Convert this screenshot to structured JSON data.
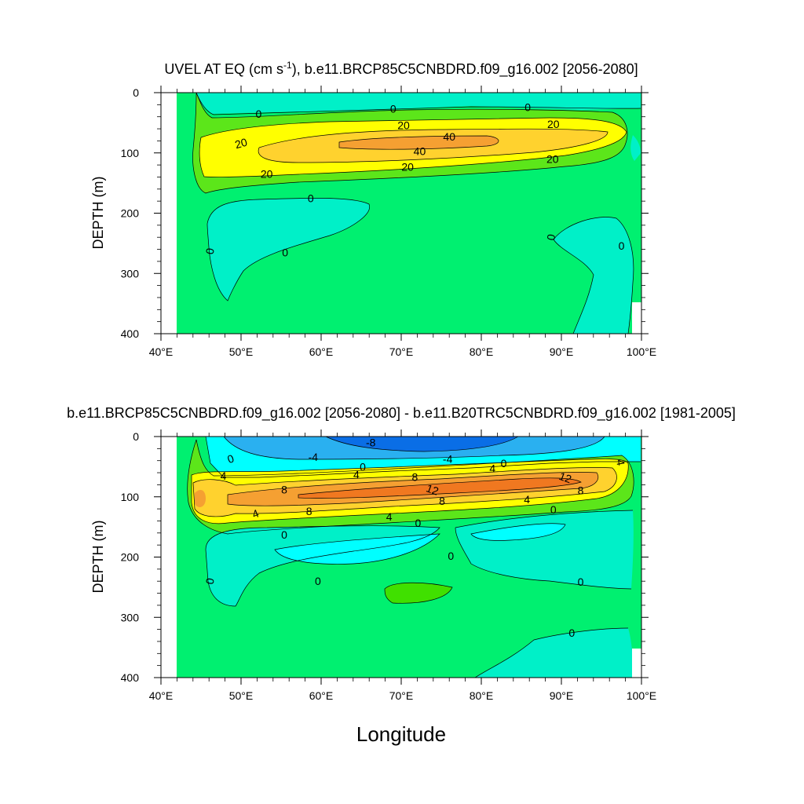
{
  "colors": {
    "background": "#ffffff",
    "level_neg8": "#0a6ee6",
    "level_neg4": "#2ab0f0",
    "level_neg0": "#00ffff",
    "level_zero": "#00f0c8",
    "base_field": "#00f070",
    "level_pos_low": "#5ce61a",
    "level_pos_green": "#40e000",
    "level_yellow": "#ffff00",
    "level_gold": "#ffd22e",
    "level_orange": "#f5a032",
    "level_deep_orange": "#f07820",
    "contour_line": "#000000"
  },
  "chart_data": [
    {
      "type": "contour",
      "panel": "top",
      "title_pre": "UVEL AT EQ (cm s",
      "title_sup": "-1",
      "title_post": "), b.e11.BRCP85C5CNBDRD.f09_g16.002 [2056-2080]",
      "ylabel": "DEPTH (m)",
      "xlim": [
        40,
        100
      ],
      "ylim": [
        0,
        400
      ],
      "y_reversed": true,
      "x_ticks": [
        40,
        50,
        60,
        70,
        80,
        90,
        100
      ],
      "x_tick_labels": [
        "40°E",
        "50°E",
        "60°E",
        "70°E",
        "80°E",
        "90°E",
        "100°E"
      ],
      "y_ticks": [
        "0",
        "100",
        "200",
        "300",
        "400"
      ],
      "contour_levels": [
        0,
        20,
        40
      ],
      "contour_labels": [
        {
          "text": "0",
          "lon": 52.2,
          "depth": 35,
          "rot": 0
        },
        {
          "text": "0",
          "lon": 69,
          "depth": 27,
          "rot": 0
        },
        {
          "text": "0",
          "lon": 85.8,
          "depth": 24,
          "rot": 0
        },
        {
          "text": "20",
          "lon": 50,
          "depth": 84,
          "rot": -15
        },
        {
          "text": "20",
          "lon": 70.3,
          "depth": 54,
          "rot": 0
        },
        {
          "text": "20",
          "lon": 89,
          "depth": 52,
          "rot": 0
        },
        {
          "text": "40",
          "lon": 76,
          "depth": 73,
          "rot": 0
        },
        {
          "text": "40",
          "lon": 72.3,
          "depth": 97,
          "rot": 0
        },
        {
          "text": "20",
          "lon": 70.8,
          "depth": 123,
          "rot": 0
        },
        {
          "text": "20",
          "lon": 88.9,
          "depth": 110,
          "rot": 0
        },
        {
          "text": "20",
          "lon": 53.2,
          "depth": 135,
          "rot": 0
        },
        {
          "text": "0",
          "lon": 58.7,
          "depth": 175,
          "rot": 0
        },
        {
          "text": "0",
          "lon": 46.1,
          "depth": 263,
          "rot": -80
        },
        {
          "text": "0",
          "lon": 55.5,
          "depth": 265,
          "rot": 0
        },
        {
          "text": "0",
          "lon": 88.7,
          "depth": 240,
          "rot": -80
        },
        {
          "text": "0",
          "lon": 97.5,
          "depth": 254,
          "rot": 0
        }
      ]
    },
    {
      "type": "contour",
      "panel": "bottom",
      "title": "b.e11.BRCP85C5CNBDRD.f09_g16.002 [2056-2080] - b.e11.B20TRC5CNBDRD.f09_g16.002 [1981-2005]",
      "ylabel": "DEPTH (m)",
      "xlabel": "Longitude",
      "xlim": [
        40,
        100
      ],
      "ylim": [
        0,
        400
      ],
      "y_reversed": true,
      "x_ticks": [
        40,
        50,
        60,
        70,
        80,
        90,
        100
      ],
      "x_tick_labels": [
        "40°E",
        "50°E",
        "60°E",
        "70°E",
        "80°E",
        "90°E",
        "100°E"
      ],
      "y_ticks": [
        "0",
        "100",
        "200",
        "300",
        "400"
      ],
      "contour_levels": [
        -8,
        -4,
        0,
        4,
        8,
        12
      ],
      "contour_labels": [
        {
          "text": "-8",
          "lon": 66.2,
          "depth": 10,
          "rot": 0
        },
        {
          "text": "0",
          "lon": 48.7,
          "depth": 37,
          "rot": -20
        },
        {
          "text": "-4",
          "lon": 59,
          "depth": 34,
          "rot": 0
        },
        {
          "text": "-4",
          "lon": 75.8,
          "depth": 37,
          "rot": 0
        },
        {
          "text": "0",
          "lon": 65.2,
          "depth": 50,
          "rot": 0
        },
        {
          "text": "0",
          "lon": 82.8,
          "depth": 44,
          "rot": 0
        },
        {
          "text": "4",
          "lon": 81.4,
          "depth": 53,
          "rot": 0
        },
        {
          "text": "4",
          "lon": 97.4,
          "depth": 43,
          "rot": 80
        },
        {
          "text": "4",
          "lon": 47.8,
          "depth": 65,
          "rot": 0
        },
        {
          "text": "4",
          "lon": 64.4,
          "depth": 63,
          "rot": 0
        },
        {
          "text": "8",
          "lon": 71.7,
          "depth": 67,
          "rot": 0
        },
        {
          "text": "12",
          "lon": 90.5,
          "depth": 68,
          "rot": 20
        },
        {
          "text": "8",
          "lon": 55.4,
          "depth": 88,
          "rot": 0
        },
        {
          "text": "12",
          "lon": 73.9,
          "depth": 88,
          "rot": 20
        },
        {
          "text": "8",
          "lon": 92.4,
          "depth": 89,
          "rot": 0
        },
        {
          "text": "8",
          "lon": 75.1,
          "depth": 107,
          "rot": 0
        },
        {
          "text": "4",
          "lon": 85.7,
          "depth": 104,
          "rot": 0
        },
        {
          "text": "8",
          "lon": 58.5,
          "depth": 124,
          "rot": 0
        },
        {
          "text": "0",
          "lon": 89,
          "depth": 121,
          "rot": 0
        },
        {
          "text": "4",
          "lon": 51.8,
          "depth": 128,
          "rot": -20
        },
        {
          "text": "4",
          "lon": 68.5,
          "depth": 133,
          "rot": 0
        },
        {
          "text": "0",
          "lon": 72.1,
          "depth": 143,
          "rot": 0
        },
        {
          "text": "0",
          "lon": 55.4,
          "depth": 163,
          "rot": 0
        },
        {
          "text": "0",
          "lon": 76.2,
          "depth": 198,
          "rot": 0
        },
        {
          "text": "0",
          "lon": 46.1,
          "depth": 240,
          "rot": -80
        },
        {
          "text": "0",
          "lon": 59.6,
          "depth": 240,
          "rot": 0
        },
        {
          "text": "0",
          "lon": 92.4,
          "depth": 241,
          "rot": 0
        },
        {
          "text": "0",
          "lon": 91.3,
          "depth": 326,
          "rot": 0
        }
      ]
    }
  ]
}
